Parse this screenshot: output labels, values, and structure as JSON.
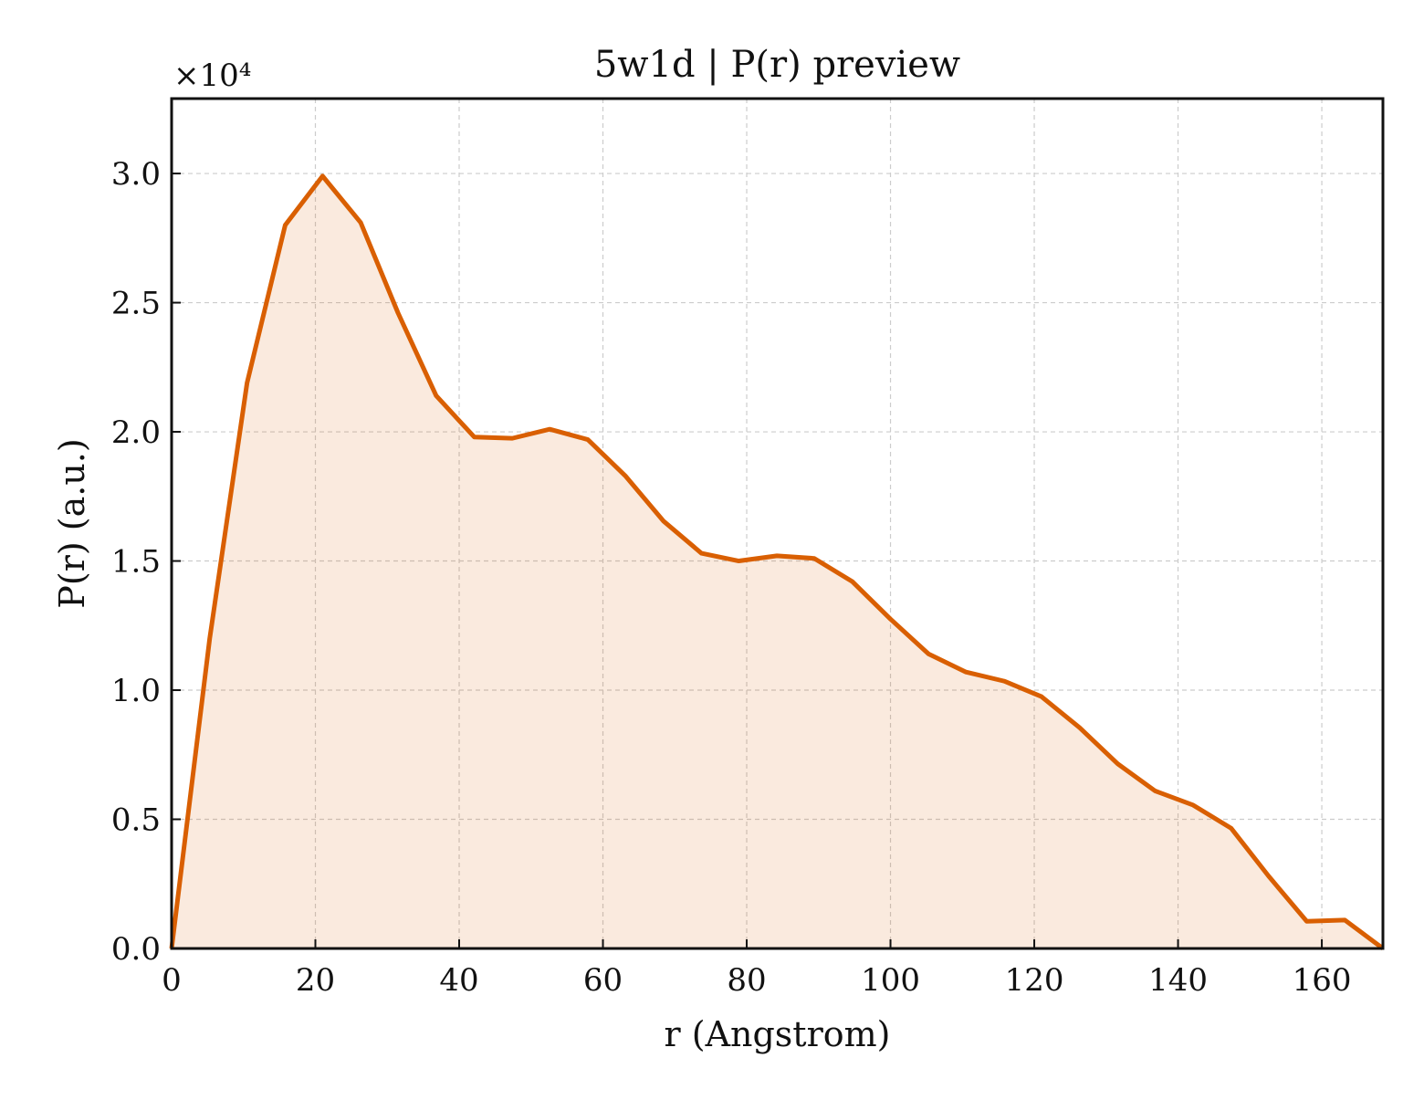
{
  "chart_data": {
    "type": "area",
    "title": "5w1d | P(r) preview",
    "xlabel": "r (Angstrom)",
    "ylabel": "P(r) (a.u.)",
    "y_multiplier_label": "×10⁴",
    "xlim": [
      0,
      168.5
    ],
    "ylim": [
      0,
      3.29
    ],
    "xticks": [
      0,
      20,
      40,
      60,
      80,
      100,
      120,
      140,
      160
    ],
    "yticks": [
      0.0,
      0.5,
      1.0,
      1.5,
      2.0,
      2.5,
      3.0
    ],
    "xtick_labels": [
      "0",
      "20",
      "40",
      "60",
      "80",
      "100",
      "120",
      "140",
      "160"
    ],
    "ytick_labels": [
      "0.0",
      "0.5",
      "1.0",
      "1.5",
      "2.0",
      "2.5",
      "3.0"
    ],
    "grid": true,
    "series": [
      {
        "color": "#d95f02",
        "fill_color": "#d95f02",
        "x": [
          0,
          5.3,
          10.5,
          15.8,
          21.0,
          26.3,
          31.5,
          36.8,
          42.1,
          47.4,
          52.6,
          57.9,
          63.1,
          68.4,
          73.7,
          78.9,
          84.2,
          89.4,
          94.7,
          100.0,
          105.3,
          110.5,
          115.8,
          121.0,
          126.3,
          131.6,
          136.8,
          142.1,
          147.4,
          152.6,
          157.9,
          163.2,
          168.5
        ],
        "y": [
          0.0,
          1.2,
          2.19,
          2.8,
          2.99,
          2.81,
          2.46,
          2.14,
          1.98,
          1.975,
          2.01,
          1.97,
          1.83,
          1.655,
          1.53,
          1.5,
          1.52,
          1.51,
          1.42,
          1.275,
          1.14,
          1.07,
          1.035,
          0.975,
          0.855,
          0.715,
          0.61,
          0.555,
          0.465,
          0.28,
          0.105,
          0.11,
          0.0
        ]
      }
    ]
  }
}
